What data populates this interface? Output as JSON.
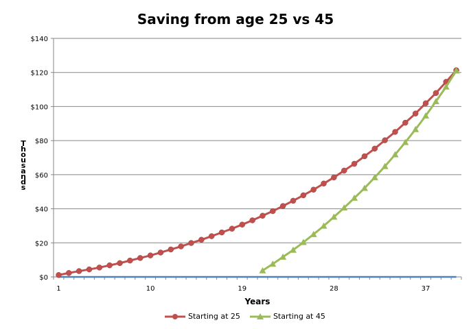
{
  "chart_data": {
    "type": "line",
    "title": "Saving from age 25 vs 45",
    "xlabel": "Years",
    "ylabel": "Thousands",
    "ylim": [
      0,
      140
    ],
    "y_tick_labels": [
      "$0",
      "$20",
      "$40",
      "$60",
      "$80",
      "$100",
      "$120",
      "$140"
    ],
    "x_tick_labels": [
      "1",
      "10",
      "19",
      "28",
      "37"
    ],
    "x_ticks": [
      1,
      10,
      19,
      28,
      37
    ],
    "xlim": [
      0.5,
      40.5
    ],
    "grid": "horizontal",
    "legend_position": "bottom",
    "x": [
      1,
      2,
      3,
      4,
      5,
      6,
      7,
      8,
      9,
      10,
      11,
      12,
      13,
      14,
      15,
      16,
      17,
      18,
      19,
      20,
      21,
      22,
      23,
      24,
      25,
      26,
      27,
      28,
      29,
      30,
      31,
      32,
      33,
      34,
      35,
      36,
      37,
      38,
      39,
      40
    ],
    "series": [
      {
        "name": "Starting at 25",
        "color": "#C0504D",
        "marker": "circle",
        "values": [
          1.1,
          2.3,
          3.4,
          4.4,
          5.5,
          6.8,
          8.1,
          9.6,
          11.1,
          12.6,
          14.3,
          16.1,
          17.9,
          19.9,
          21.8,
          23.9,
          26.1,
          28.3,
          30.7,
          33.2,
          35.9,
          38.6,
          41.6,
          44.7,
          47.9,
          51.2,
          54.8,
          58.4,
          62.4,
          66.4,
          70.8,
          75.3,
          80.2,
          85.1,
          90.5,
          95.9,
          101.9,
          107.9,
          114.5,
          121.3
        ]
      },
      {
        "name": "Starting at 45",
        "color": "#9BBB59",
        "marker": "triangle",
        "values": [
          null,
          null,
          null,
          null,
          null,
          null,
          null,
          null,
          null,
          null,
          null,
          null,
          null,
          null,
          null,
          null,
          null,
          null,
          null,
          null,
          3.7,
          7.6,
          11.7,
          15.8,
          20.3,
          25.0,
          29.9,
          35.2,
          40.6,
          46.3,
          52.1,
          58.4,
          64.9,
          71.8,
          79.0,
          86.6,
          94.6,
          103.0,
          111.6,
          121.0
        ]
      },
      {
        "color": "#4F81BD",
        "marker": "none",
        "values": [
          0,
          0,
          0,
          0,
          0,
          0,
          0,
          0,
          0,
          0,
          0,
          0,
          0,
          0,
          0,
          0,
          0,
          0,
          0,
          0,
          0,
          0,
          0,
          0,
          0,
          0,
          0,
          0,
          0,
          0,
          0,
          0,
          0,
          0,
          0,
          0,
          0,
          0,
          0,
          0
        ]
      }
    ]
  }
}
